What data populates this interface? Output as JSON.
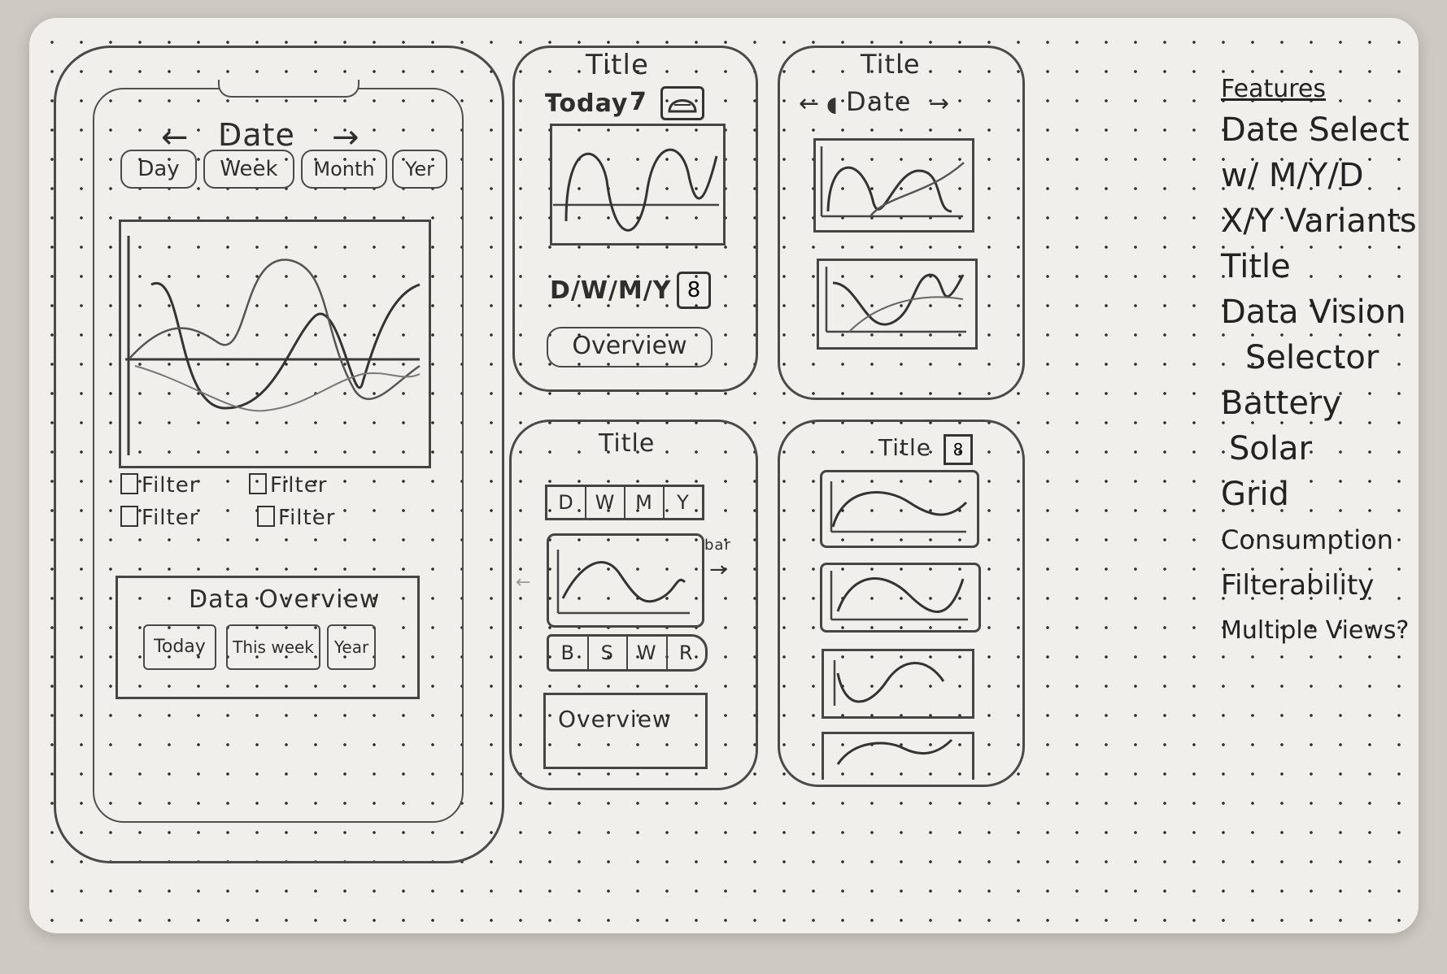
{
  "screen1": {
    "date_label": "Date",
    "prev_arrow": "←",
    "next_arrow": "→",
    "range_tabs": [
      "Day",
      "Week",
      "Month",
      "Yer"
    ],
    "filters": [
      "Filter",
      "Filter",
      "Filter",
      "Filter"
    ],
    "overview_title": "Data Overview",
    "overview_tabs": [
      "Today",
      "This week",
      "Year"
    ]
  },
  "screen2": {
    "title": "Title",
    "date_label": "Today",
    "date_arrow": "7",
    "range_label": "D/W/M/Y",
    "overview_label": "Overview"
  },
  "screen3": {
    "title": "Title",
    "date_label": "Date",
    "prev_arrow": "←",
    "next_arrow": "→"
  },
  "screen4": {
    "title": "Title",
    "range_tabs": [
      "D",
      "W",
      "M",
      "Y"
    ],
    "source_tabs": [
      "B",
      "S",
      "W",
      "R"
    ],
    "side_note": "bar",
    "overview_label": "Overview"
  },
  "screen5": {
    "title": "Title"
  },
  "features": {
    "heading": "Features",
    "items": [
      "Date Select",
      "w/ M/Y/D",
      "X/Y Variants",
      "Title",
      "Data Vision",
      "Selector",
      "Battery",
      "Solar",
      "Grid",
      "Consumption",
      "Filterability",
      "Multiple Views?"
    ]
  }
}
